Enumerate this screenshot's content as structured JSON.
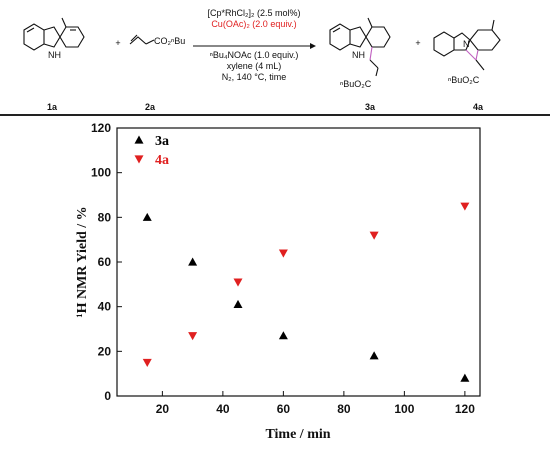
{
  "scheme": {
    "compounds": {
      "c1a": "1a",
      "c2a": "2a",
      "c3a": "3a",
      "c4a": "4a"
    },
    "atoms": {
      "nh": "NH",
      "n": "N",
      "ester_reagent": "CO₂ⁿBu",
      "ester_3a": "ⁿBuO₂C",
      "ester_4a": "ⁿBuO₂C"
    },
    "plus": "+",
    "conditions": [
      {
        "text": "[Cp*RhCl₂]₂ (2.5 mol%)",
        "color": "#111111"
      },
      {
        "text": "Cu(OAc)₂ (2.0 equiv.)",
        "color": "#e02020"
      },
      {
        "text": "ⁿBu₄NOAc (1.0 equiv.)",
        "color": "#111111"
      },
      {
        "text": "xylene (4 mL)",
        "color": "#111111"
      },
      {
        "text": "N₂, 140 °C, time",
        "color": "#111111"
      }
    ]
  },
  "chart_data": {
    "type": "scatter",
    "xlabel": "Time / min",
    "ylabel": "¹H NMR Yield / %",
    "xlim": [
      5,
      125
    ],
    "ylim": [
      0,
      120
    ],
    "xticks": [
      20,
      40,
      60,
      80,
      100,
      120
    ],
    "yticks": [
      0,
      20,
      40,
      60,
      80,
      100,
      120
    ],
    "grid": false,
    "legend_position": "top-left",
    "series": [
      {
        "name": "3a",
        "marker": "triangle-up",
        "color": "#000000",
        "points": [
          [
            15,
            80
          ],
          [
            30,
            60
          ],
          [
            45,
            41
          ],
          [
            60,
            27
          ],
          [
            90,
            18
          ],
          [
            120,
            8
          ]
        ]
      },
      {
        "name": "4a",
        "marker": "triangle-down",
        "color": "#e02020",
        "points": [
          [
            15,
            15
          ],
          [
            30,
            27
          ],
          [
            45,
            51
          ],
          [
            60,
            64
          ],
          [
            90,
            72
          ],
          [
            120,
            85
          ]
        ]
      }
    ]
  }
}
